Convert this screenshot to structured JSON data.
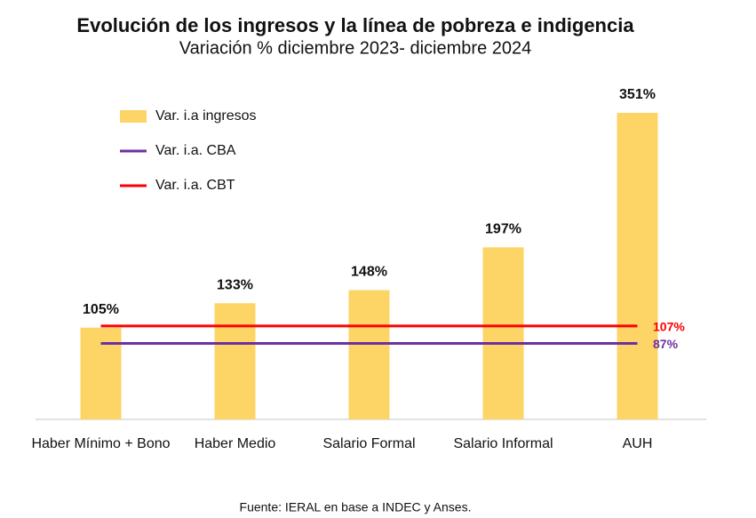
{
  "chart_data": {
    "type": "bar",
    "title": "Evolución de los ingresos y la línea de pobreza e indigencia",
    "subtitle": "Variación % diciembre 2023- diciembre 2024",
    "source": "Fuente: IERAL en base a INDEC y Anses.",
    "categories": [
      "Haber Mínimo + Bono",
      "Haber Medio",
      "Salario Formal",
      "Salario Informal",
      "AUH"
    ],
    "series": [
      {
        "name": "Var. i.a ingresos",
        "color": "#fdd466",
        "values": [
          105,
          133,
          148,
          197,
          351
        ],
        "value_labels": [
          "105%",
          "133%",
          "148%",
          "197%",
          "351%"
        ]
      }
    ],
    "lines": [
      {
        "name": "Var. i.a. CBA",
        "color": "#7030a0",
        "value": 87,
        "value_label": "87%"
      },
      {
        "name": "Var. i.a. CBT",
        "color": "#ff0000",
        "value": 107,
        "value_label": "107%"
      }
    ]
  }
}
